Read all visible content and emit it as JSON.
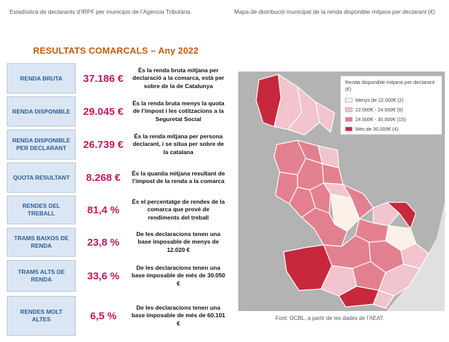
{
  "captions": {
    "left": "Estadística de declarants d’IRPF per municipis de l’Agència Tributària.",
    "right": "Mapa de distribució municipal de la renda disponible mitjana per declarant (€)"
  },
  "results": {
    "title": "RESULTATS COMARCALS – Any 2022",
    "rows": [
      {
        "label": "RENDA BRUTA",
        "value": "37.186 €",
        "desc": "És la renda bruta mitjana per declaració a la comarca, està per sobre de la de Catalunya"
      },
      {
        "label": "RENDA DISPONIBLE",
        "value": "29.045 €",
        "desc": "És la renda bruta menys la quota de l’impost i les cotitzacions a la Seguretat Social"
      },
      {
        "label": "RENDA DISPONIBLE PER DECLARANT",
        "value": "26.739 €",
        "desc": "És la renda mitjana per persona declarant, i se situa per sobre de la catalana"
      },
      {
        "label": "QUOTA RESULTANT",
        "value": "8.268 €",
        "desc": "És la quantia mitjana resultant de l’impost de la renda a la comarca"
      },
      {
        "label": "RENDES DEL TREBALL",
        "value": "81,4 %",
        "desc": "És el percentatge de rendes de la comarca que prové de rendiments del treball"
      },
      {
        "label": "TRAMS BAIXOS DE RENDA",
        "value": "23,8 %",
        "desc": "De les declaracions tenen una base imposable de menys de 12.020 €"
      },
      {
        "label": "TRAMS ALTS DE RENDA",
        "value": "33,6 %",
        "desc": "De les declaracions tenen una base imposable de més de 30.050 €"
      },
      {
        "label": "RENDES MOLT ALTES",
        "value": "6,5 %",
        "desc": "De les declaracions tenen una base imposable de més de 60.101 €"
      }
    ]
  },
  "map": {
    "legend": {
      "title": "Renda disponible mitjana per declarant (€)",
      "items": [
        {
          "label": "Menys de 22.000€ (2)",
          "color": "#fbf0e8"
        },
        {
          "label": "22.000€ - 24.500€ (9)",
          "color": "#f2c4cd"
        },
        {
          "label": "24.500€ - 30.000€ (15)",
          "color": "#e3808f"
        },
        {
          "label": "Més de 30.000€ (4)",
          "color": "#c8283d"
        }
      ]
    },
    "colors": {
      "base": "#b3b3b3",
      "outline": "#ffffff",
      "sea": "#e0e0e0"
    }
  },
  "source": "Font: OCBL, a partir de les dades de l’AEAT."
}
